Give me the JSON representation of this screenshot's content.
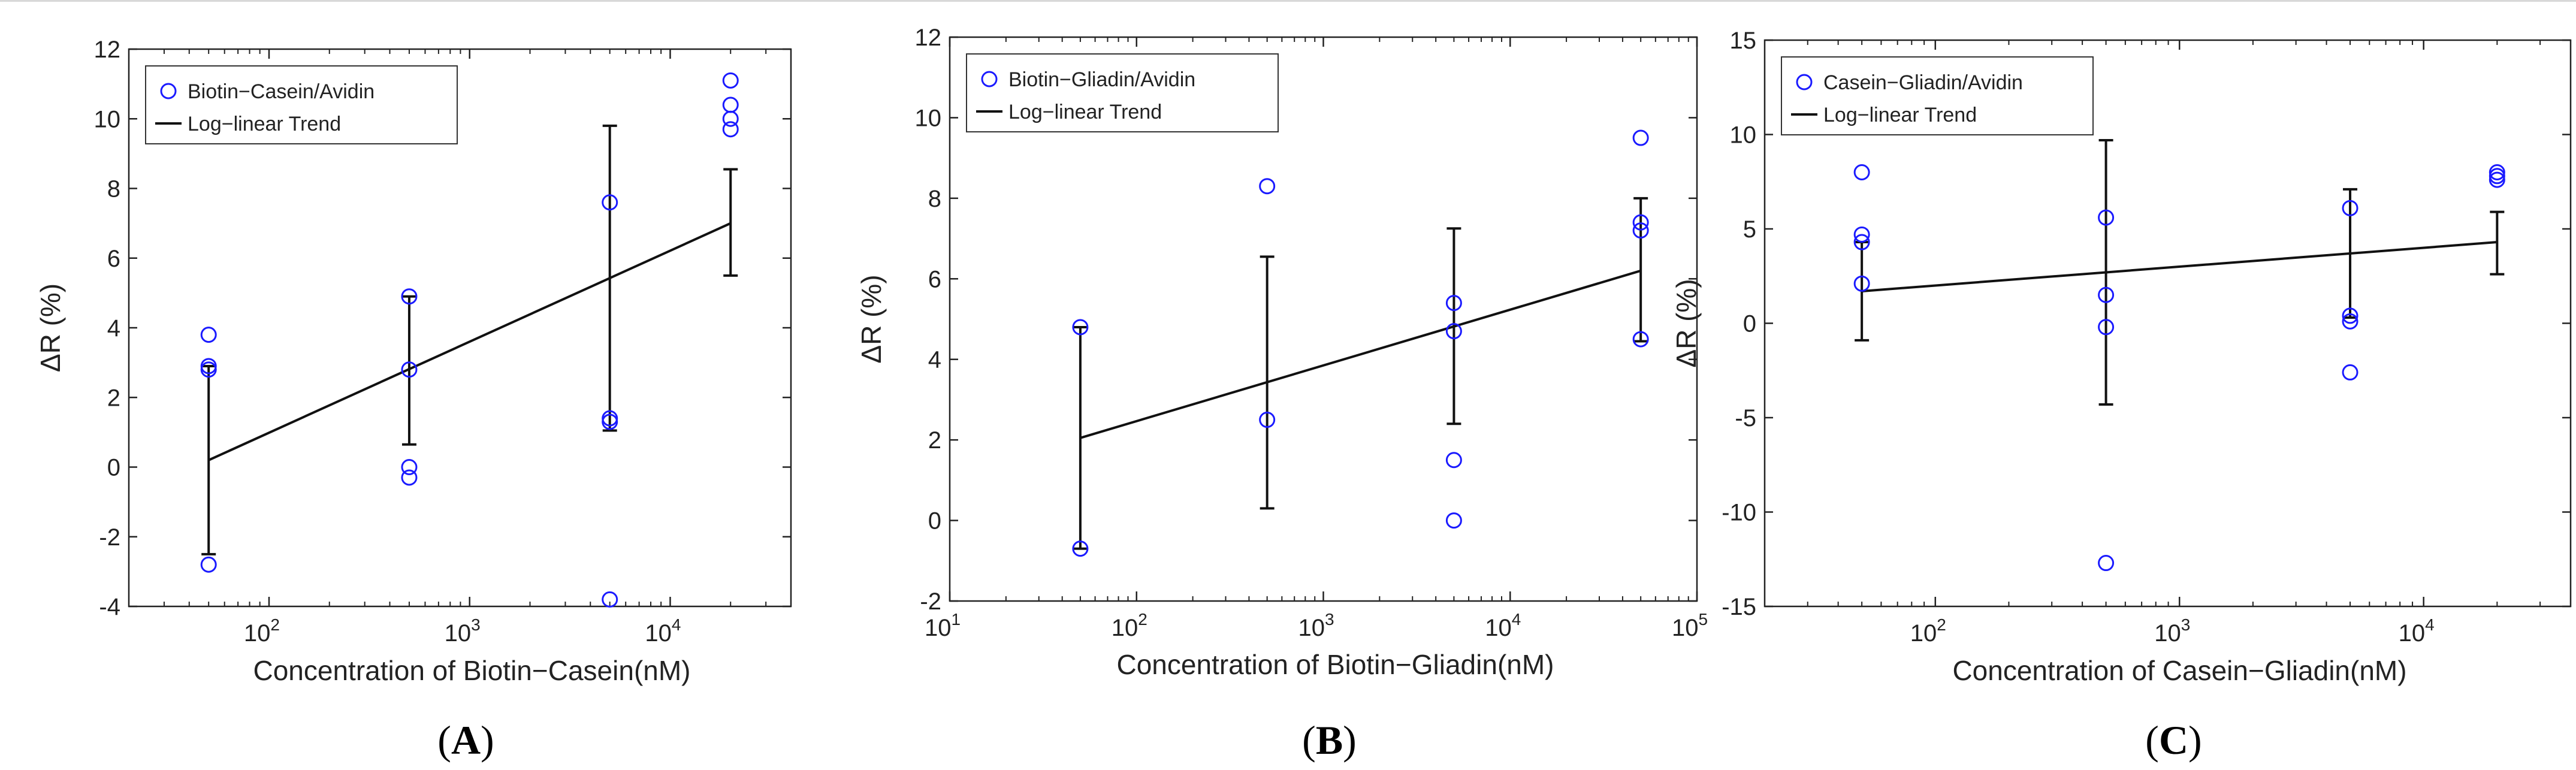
{
  "chart_data": [
    {
      "type": "scatter",
      "panel_label": "(A)",
      "panel_letter": "A",
      "xscale": "log",
      "xlim": [
        20,
        40000
      ],
      "ylim": [
        -4,
        12
      ],
      "xlabel": "Concentration of Biotin−Casein(nM)",
      "ylabel": "ΔR (%)",
      "x_ticks": [
        {
          "value": 100,
          "base": "10",
          "exp": "2"
        },
        {
          "value": 1000,
          "base": "10",
          "exp": "3"
        },
        {
          "value": 10000,
          "base": "10",
          "exp": "4"
        }
      ],
      "y_ticks": [
        -4,
        -2,
        0,
        2,
        4,
        6,
        8,
        10,
        12
      ],
      "legend": {
        "position": "top-left",
        "scatter_label": "Biotin−Casein/Avidin",
        "line_label": "Log−linear Trend"
      },
      "points": [
        {
          "x": 50,
          "y": 3.8
        },
        {
          "x": 50,
          "y": 2.9
        },
        {
          "x": 50,
          "y": 2.8
        },
        {
          "x": 50,
          "y": -2.8
        },
        {
          "x": 500,
          "y": 4.9
        },
        {
          "x": 500,
          "y": 2.8
        },
        {
          "x": 500,
          "y": 0.0
        },
        {
          "x": 500,
          "y": -0.3
        },
        {
          "x": 5000,
          "y": 7.6
        },
        {
          "x": 5000,
          "y": 1.4
        },
        {
          "x": 5000,
          "y": 1.3
        },
        {
          "x": 5000,
          "y": -3.8
        },
        {
          "x": 20000,
          "y": 11.1
        },
        {
          "x": 20000,
          "y": 10.4
        },
        {
          "x": 20000,
          "y": 10.0
        },
        {
          "x": 20000,
          "y": 9.7
        }
      ],
      "trend": {
        "x": [
          50,
          20000
        ],
        "y": [
          0.2,
          7.0
        ]
      },
      "error_bars": [
        {
          "x": 50,
          "low": -2.5,
          "high": 2.9
        },
        {
          "x": 500,
          "low": 0.65,
          "high": 4.9
        },
        {
          "x": 5000,
          "low": 1.05,
          "high": 9.8
        },
        {
          "x": 20000,
          "low": 5.5,
          "high": 8.55
        }
      ]
    },
    {
      "type": "scatter",
      "panel_label": "(B)",
      "panel_letter": "B",
      "xscale": "log",
      "xlim": [
        10,
        100000
      ],
      "ylim": [
        -2,
        12
      ],
      "xlabel": "Concentration of Biotin−Gliadin(nM)",
      "ylabel": "ΔR (%)",
      "x_ticks": [
        {
          "value": 10,
          "base": "10",
          "exp": "1"
        },
        {
          "value": 100,
          "base": "10",
          "exp": "2"
        },
        {
          "value": 1000,
          "base": "10",
          "exp": "3"
        },
        {
          "value": 10000,
          "base": "10",
          "exp": "4"
        },
        {
          "value": 100000,
          "base": "10",
          "exp": "5"
        }
      ],
      "y_ticks": [
        -2,
        0,
        2,
        4,
        6,
        8,
        10,
        12
      ],
      "legend": {
        "position": "top-left",
        "scatter_label": "Biotin−Gliadin/Avidin",
        "line_label": "Log−linear Trend"
      },
      "points": [
        {
          "x": 50,
          "y": 4.8
        },
        {
          "x": 50,
          "y": -0.7
        },
        {
          "x": 500,
          "y": 8.3
        },
        {
          "x": 500,
          "y": 2.5
        },
        {
          "x": 5000,
          "y": 5.4
        },
        {
          "x": 5000,
          "y": 4.7
        },
        {
          "x": 5000,
          "y": 1.5
        },
        {
          "x": 5000,
          "y": 0.0
        },
        {
          "x": 50000,
          "y": 9.5
        },
        {
          "x": 50000,
          "y": 7.4
        },
        {
          "x": 50000,
          "y": 7.2
        },
        {
          "x": 50000,
          "y": 4.5
        }
      ],
      "trend": {
        "x": [
          50,
          50000
        ],
        "y": [
          2.05,
          6.2
        ]
      },
      "error_bars": [
        {
          "x": 50,
          "low": -0.7,
          "high": 4.8
        },
        {
          "x": 500,
          "low": 0.3,
          "high": 6.55
        },
        {
          "x": 5000,
          "low": 2.4,
          "high": 7.25
        },
        {
          "x": 50000,
          "low": 4.45,
          "high": 8.0
        }
      ]
    },
    {
      "type": "scatter",
      "panel_label": "(C)",
      "panel_letter": "C",
      "xscale": "log",
      "xlim": [
        20,
        40000
      ],
      "ylim": [
        -15,
        15
      ],
      "xlabel": "Concentration of Casein−Gliadin(nM)",
      "ylabel": "ΔR (%)",
      "x_ticks": [
        {
          "value": 100,
          "base": "10",
          "exp": "2"
        },
        {
          "value": 1000,
          "base": "10",
          "exp": "3"
        },
        {
          "value": 10000,
          "base": "10",
          "exp": "4"
        }
      ],
      "y_ticks": [
        -15,
        -10,
        -5,
        0,
        5,
        10,
        15
      ],
      "legend": {
        "position": "top-left",
        "scatter_label": "Casein−Gliadin/Avidin",
        "line_label": "Log−linear Trend"
      },
      "points": [
        {
          "x": 50,
          "y": 8.0
        },
        {
          "x": 50,
          "y": 4.7
        },
        {
          "x": 50,
          "y": 4.3
        },
        {
          "x": 50,
          "y": 2.1
        },
        {
          "x": 500,
          "y": 5.6
        },
        {
          "x": 500,
          "y": 1.5
        },
        {
          "x": 500,
          "y": -0.2
        },
        {
          "x": 500,
          "y": -12.7
        },
        {
          "x": 5000,
          "y": 6.1
        },
        {
          "x": 5000,
          "y": 0.4
        },
        {
          "x": 5000,
          "y": 0.1
        },
        {
          "x": 5000,
          "y": -2.6
        },
        {
          "x": 20000,
          "y": 8.0
        },
        {
          "x": 20000,
          "y": 7.8
        },
        {
          "x": 20000,
          "y": 7.6
        }
      ],
      "trend": {
        "x": [
          50,
          20000
        ],
        "y": [
          1.7,
          4.3
        ]
      },
      "error_bars": [
        {
          "x": 50,
          "low": -0.9,
          "high": 4.3
        },
        {
          "x": 500,
          "low": -4.3,
          "high": 9.7
        },
        {
          "x": 5000,
          "low": 0.3,
          "high": 7.1
        },
        {
          "x": 20000,
          "low": 2.6,
          "high": 5.9
        }
      ]
    }
  ],
  "colors": {
    "marker": "#1a1aff",
    "trend": "#111111",
    "axis": "#222222",
    "errorbar": "#111111"
  }
}
